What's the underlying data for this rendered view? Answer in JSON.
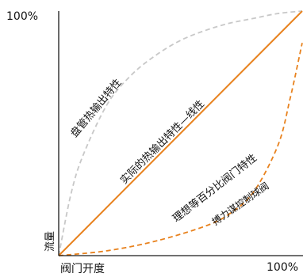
{
  "chart_data": {
    "type": "line",
    "title": "",
    "xlabel": "阀门开度",
    "ylabel": "流量",
    "xlim": [
      0,
      100
    ],
    "ylim": [
      0,
      100
    ],
    "x_tick_labels": {
      "max": "100%"
    },
    "y_tick_labels": {
      "max": "100%"
    },
    "grid": false,
    "legend": "none",
    "series": [
      {
        "name": "盘管热输出特性",
        "style": "dashed",
        "color": "#c8c8c8",
        "x": [
          0,
          5,
          10,
          20,
          30,
          40,
          50,
          60,
          70,
          80,
          90,
          100
        ],
        "y": [
          0,
          25,
          41,
          62,
          74,
          82,
          88,
          92,
          95,
          97,
          99,
          100
        ]
      },
      {
        "name": "实际的热输出特性—线性",
        "style": "solid",
        "color": "#e8821e",
        "x": [
          0,
          100
        ],
        "y": [
          0,
          100
        ]
      },
      {
        "name": "理想等百分比阀门特性",
        "style": "dashed",
        "color": "#e8821e",
        "x": [
          0,
          20,
          40,
          60,
          70,
          80,
          90,
          95,
          100
        ],
        "y": [
          0,
          2,
          6,
          12,
          17,
          26,
          45,
          64,
          87
        ]
      }
    ],
    "annotations": [
      {
        "text": "搏力谋控制球阀",
        "color": "#111111"
      }
    ]
  }
}
